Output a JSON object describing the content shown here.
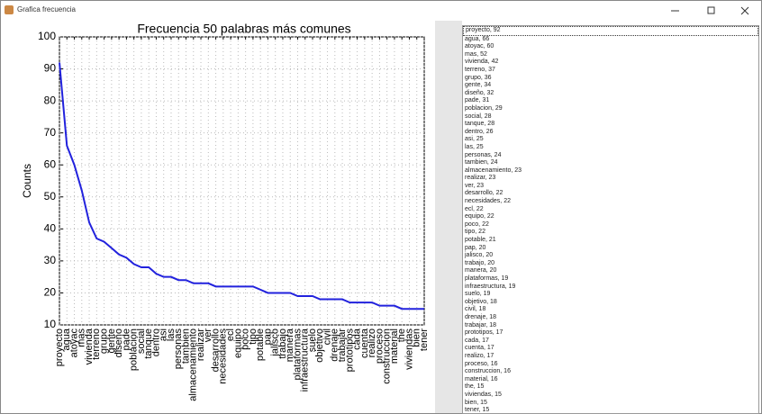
{
  "window": {
    "title": "Grafica frecuencia"
  },
  "chart_data": {
    "type": "line",
    "title": "Frecuencia 50 palabras más comunes",
    "y_label": "Counts",
    "categories": [
      "proyecto",
      "agua",
      "atoyac",
      "mas",
      "vivienda",
      "terreno",
      "grupo",
      "gente",
      "diseño",
      "pade",
      "poblacion",
      "social",
      "tanque",
      "dentro",
      "asi",
      "las",
      "personas",
      "tambien",
      "almacenamiento",
      "realizar",
      "ver",
      "desarrollo",
      "necesidades",
      "ecl",
      "equipo",
      "poco",
      "tipo",
      "potable",
      "pap",
      "jalisco",
      "trabajo",
      "manera",
      "plataformas",
      "infraestructura",
      "suelo",
      "objetivo",
      "civil",
      "drenaje",
      "trabajar",
      "prototipos",
      "cada",
      "cuenta",
      "realizo",
      "proceso",
      "construccion",
      "material",
      "the",
      "viviendas",
      "bien",
      "tener"
    ],
    "values": [
      92,
      66,
      60,
      52,
      42,
      37,
      36,
      34,
      32,
      31,
      29,
      28,
      28,
      26,
      25,
      25,
      24,
      24,
      23,
      23,
      23,
      22,
      22,
      22,
      22,
      22,
      22,
      21,
      20,
      20,
      20,
      20,
      19,
      19,
      19,
      18,
      18,
      18,
      18,
      17,
      17,
      17,
      17,
      16,
      16,
      16,
      15,
      15,
      15,
      15
    ],
    "color": "#2222dd",
    "ylim": [
      10,
      100
    ],
    "yticks": [
      10,
      20,
      30,
      40,
      50,
      60,
      70,
      80,
      90,
      100
    ],
    "grid": true
  },
  "listbox": {
    "items": [
      "proyecto, 92",
      "agua, 66",
      "atoyac, 60",
      "mas, 52",
      "vivienda, 42",
      "terreno, 37",
      "grupo, 36",
      "gente, 34",
      "diseño, 32",
      "pade, 31",
      "poblacion, 29",
      "social, 28",
      "tanque, 28",
      "dentro, 26",
      "asi, 25",
      "las, 25",
      "personas, 24",
      "tambien, 24",
      "almacenamiento, 23",
      "realizar, 23",
      "ver, 23",
      "desarrollo, 22",
      "necesidades, 22",
      "ecl, 22",
      "equipo, 22",
      "poco, 22",
      "tipo, 22",
      "potable, 21",
      "pap, 20",
      "jalisco, 20",
      "trabajo, 20",
      "manera, 20",
      "plataformas, 19",
      "infraestructura, 19",
      "suelo, 19",
      "objetivo, 18",
      "civil, 18",
      "drenaje, 18",
      "trabajar, 18",
      "prototipos, 17",
      "cada, 17",
      "cuenta, 17",
      "realizo, 17",
      "proceso, 16",
      "construccion, 16",
      "material, 16",
      "the, 15",
      "viviendas, 15",
      "bien, 15",
      "tener, 15"
    ]
  }
}
